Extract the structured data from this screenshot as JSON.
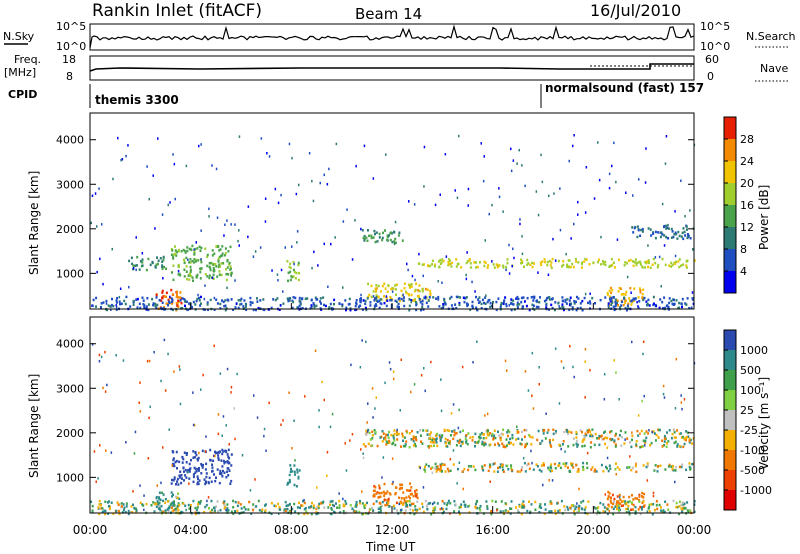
{
  "header": {
    "station": "Rankin Inlet (fitACF)",
    "beam": "Beam 14",
    "date": "16/Jul/2010"
  },
  "strip": {
    "nsky_label": "N.Sky",
    "nsky_ticks": [
      "10^5",
      "10^0"
    ],
    "nsearch_label": "N.Search",
    "nsearch_ticks": [
      "10^5",
      "10^0"
    ],
    "freq_label_1": "Freq.",
    "freq_label_2": "[MHz]",
    "freq_ticks": [
      "18",
      "8"
    ],
    "nave_label": "Nave",
    "nave_ticks": [
      "60",
      "0"
    ],
    "cpid_label": "CPID",
    "programs": [
      {
        "name": "themis 3300",
        "start_hour": 0
      },
      {
        "name": "normalsound (fast) 157",
        "start_hour": 18
      }
    ]
  },
  "axes": {
    "ylabel": "Slant Range [km]",
    "xlabel": "Time UT",
    "xticks": [
      "00:00",
      "04:00",
      "08:00",
      "12:00",
      "16:00",
      "20:00",
      "00:00"
    ],
    "yticks": [
      "1000",
      "2000",
      "3000",
      "4000"
    ]
  },
  "colorbars": {
    "power": {
      "label": "Power [dB]",
      "ticks": [
        "4",
        "8",
        "12",
        "16",
        "20",
        "24",
        "28"
      ],
      "colors": [
        "#0000ee",
        "#1f4ec0",
        "#2d7a73",
        "#4aa24a",
        "#9fce2e",
        "#f0c400",
        "#f38a00",
        "#e62000"
      ]
    },
    "velocity": {
      "label": "Velocity [m s⁻¹]",
      "ticks": [
        "1000",
        "500",
        "100",
        "25",
        "-25",
        "-100",
        "-500",
        "-1000"
      ],
      "colors": [
        "#2a4ab0",
        "#2e8a8a",
        "#3ea04a",
        "#7ed040",
        "#c0c0c0",
        "#f3b000",
        "#f07800",
        "#ee4000",
        "#e00000"
      ]
    }
  },
  "chart_data": [
    {
      "type": "heatmap",
      "title": "Power [dB]",
      "xlabel": "Time UT",
      "ylabel": "Slant Range [km]",
      "xlim": [
        0,
        24
      ],
      "ylim": [
        200,
        4600
      ],
      "value_range": [
        0,
        30
      ],
      "regions": [
        {
          "t": [
            2.6,
            3.6
          ],
          "r": [
            200,
            700
          ],
          "value": 26
        },
        {
          "t": [
            3.2,
            5.6
          ],
          "r": [
            850,
            1650
          ],
          "value": 14
        },
        {
          "t": [
            1.5,
            3.0
          ],
          "r": [
            1100,
            1400
          ],
          "value": 10
        },
        {
          "t": [
            7.8,
            8.3
          ],
          "r": [
            800,
            1300
          ],
          "value": 16
        },
        {
          "t": [
            10.8,
            12.5
          ],
          "r": [
            1700,
            2000
          ],
          "value": 12
        },
        {
          "t": [
            13.0,
            24.0
          ],
          "r": [
            1150,
            1350
          ],
          "value": 18
        },
        {
          "t": [
            11.0,
            13.5
          ],
          "r": [
            400,
            800
          ],
          "value": 20
        },
        {
          "t": [
            20.5,
            22.0
          ],
          "r": [
            300,
            700
          ],
          "value": 22
        },
        {
          "t": [
            21.5,
            24.0
          ],
          "r": [
            1800,
            2100
          ],
          "value": 8
        },
        {
          "t": [
            0.0,
            24.0
          ],
          "r": [
            200,
            500
          ],
          "value": 6
        }
      ]
    },
    {
      "type": "heatmap",
      "title": "Velocity [m s⁻¹]",
      "xlabel": "Time UT",
      "ylabel": "Slant Range [km]",
      "xlim": [
        0,
        24
      ],
      "ylim": [
        200,
        4600
      ],
      "value_range": [
        -1000,
        1000
      ],
      "regions": [
        {
          "t": [
            3.2,
            5.6
          ],
          "r": [
            850,
            1650
          ],
          "value": 800
        },
        {
          "t": [
            2.6,
            3.6
          ],
          "r": [
            200,
            700
          ],
          "value": 150
        },
        {
          "t": [
            11.2,
            13.0
          ],
          "r": [
            400,
            900
          ],
          "value": -350
        },
        {
          "t": [
            20.5,
            22.0
          ],
          "r": [
            300,
            700
          ],
          "value": -400
        },
        {
          "t": [
            13.0,
            24.0
          ],
          "r": [
            1150,
            1350
          ],
          "value": 0
        },
        {
          "t": [
            10.8,
            24.0
          ],
          "r": [
            1700,
            2100
          ],
          "value": 0
        },
        {
          "t": [
            7.8,
            8.3
          ],
          "r": [
            800,
            1300
          ],
          "value": 300
        },
        {
          "t": [
            0.0,
            24.0
          ],
          "r": [
            200,
            500
          ],
          "value": 50
        }
      ]
    }
  ]
}
